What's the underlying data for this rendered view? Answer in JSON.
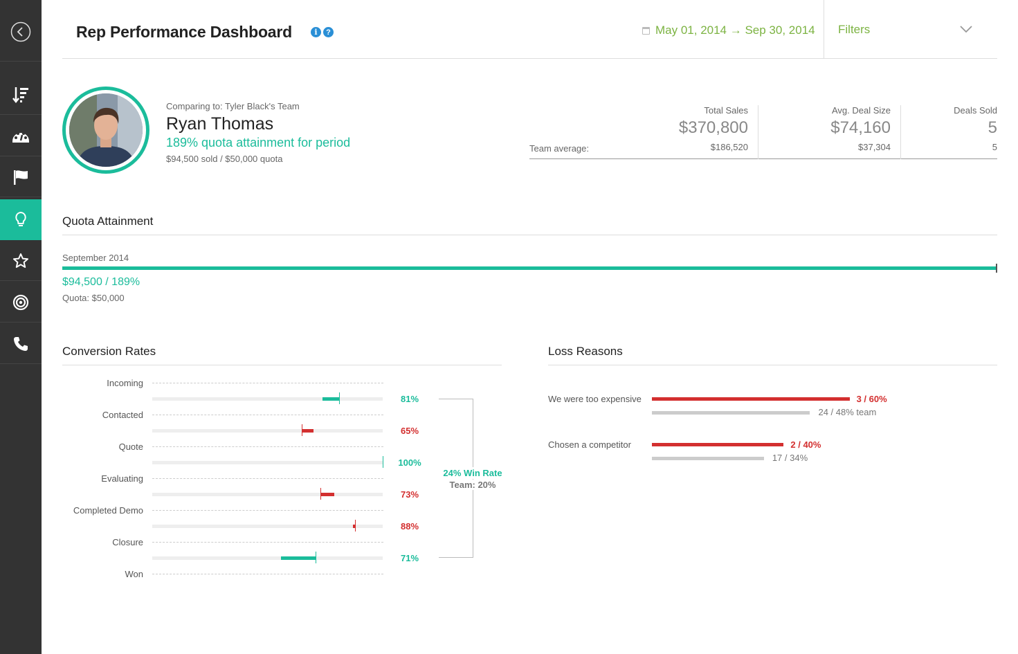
{
  "colors": {
    "accent": "#1bbc9b",
    "negative": "#d32f2f",
    "date_green": "#7cb342",
    "sidebar": "#333333",
    "info_blue": "#2a8fd6"
  },
  "sidebar": {
    "items": [
      {
        "icon": "back-arrow-icon",
        "active": false
      },
      {
        "icon": "sort-icon",
        "active": false
      },
      {
        "icon": "dashboard-gauge-icon",
        "active": false
      },
      {
        "icon": "flag-icon",
        "active": false
      },
      {
        "icon": "lightbulb-icon",
        "active": true
      },
      {
        "icon": "star-icon",
        "active": false
      },
      {
        "icon": "target-icon",
        "active": false
      },
      {
        "icon": "phone-icon",
        "active": false
      }
    ]
  },
  "header": {
    "title": "Rep Performance Dashboard",
    "info_icon": "i",
    "help_icon": "?",
    "date_range": "May 01, 2014 → Sep 30, 2014",
    "filters_label": "Filters"
  },
  "profile": {
    "comparing_to": "Comparing to: Tyler Black's Team",
    "name": "Ryan Thomas",
    "attainment": "189% quota attainment for period",
    "sold_vs_quota": "$94,500 sold / $50,000 quota"
  },
  "stats": {
    "team_average_label": "Team average:",
    "columns": [
      {
        "label": "Total Sales",
        "value": "$370,800",
        "team": "$186,520"
      },
      {
        "label": "Avg. Deal Size",
        "value": "$74,160",
        "team": "$37,304"
      },
      {
        "label": "Deals Sold",
        "value": "5",
        "team": "5"
      }
    ]
  },
  "quota_attainment": {
    "heading": "Quota Attainment",
    "month": "September 2014",
    "fill_fraction": 1.0,
    "amount": "$94,500 / 189%",
    "quota": "Quota: $50,000"
  },
  "conversion": {
    "heading": "Conversion Rates",
    "stages": [
      "Incoming",
      "Contacted",
      "Quote",
      "Evaluating",
      "Completed Demo",
      "Closure",
      "Won"
    ],
    "rates": [
      {
        "rep": 81,
        "team": 74,
        "label": "81%",
        "positive": true
      },
      {
        "rep": 65,
        "team": 70,
        "label": "65%",
        "positive": false
      },
      {
        "rep": 100,
        "team": 100,
        "label": "100%",
        "positive": true
      },
      {
        "rep": 73,
        "team": 79,
        "label": "73%",
        "positive": false
      },
      {
        "rep": 88,
        "team": 87,
        "label": "88%",
        "positive": false
      },
      {
        "rep": 71,
        "team": 56,
        "label": "71%",
        "positive": true
      }
    ],
    "win_rate": "24% Win Rate",
    "team_rate": "Team: 20%"
  },
  "loss_reasons": {
    "heading": "Loss Reasons",
    "items": [
      {
        "label": "We were too expensive",
        "rep_fraction": 0.6,
        "team_fraction": 0.48,
        "rep_text": "3 / 60%",
        "team_text": "24 / 48% team"
      },
      {
        "label": "Chosen a competitor",
        "rep_fraction": 0.4,
        "team_fraction": 0.34,
        "rep_text": "2 / 40%",
        "team_text": "17 / 34%"
      }
    ]
  }
}
